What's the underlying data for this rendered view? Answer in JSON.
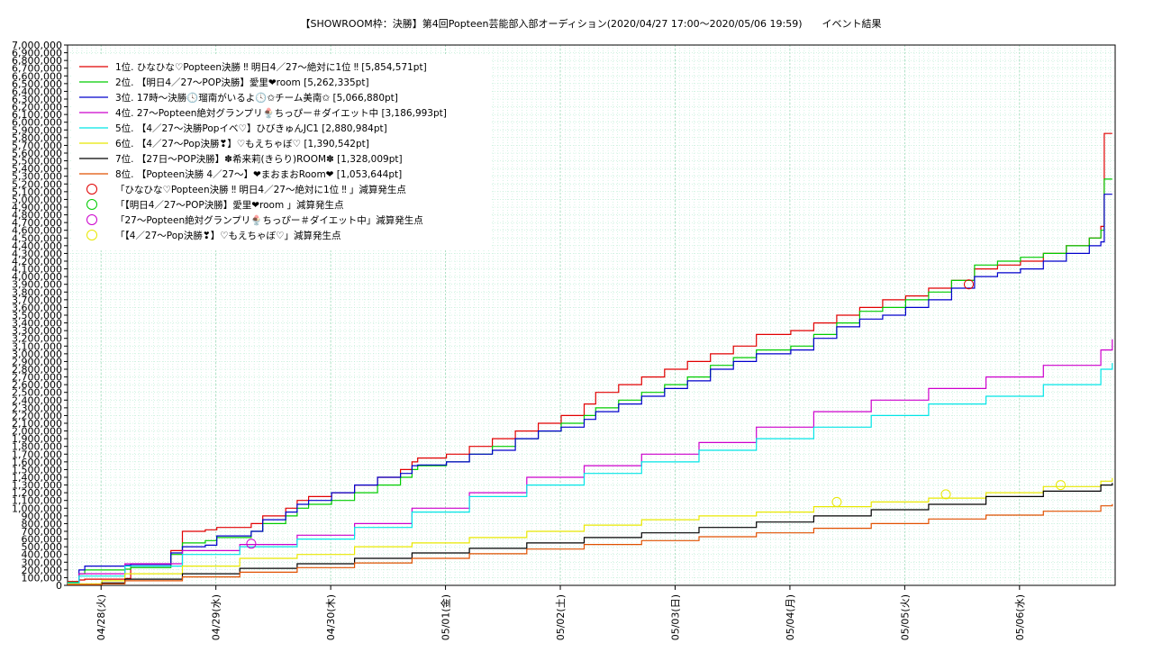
{
  "chart_data": {
    "type": "line",
    "title": "【SHOWROOM枠：決勝】第4回Popteen芸能部入部オーディション(2020/04/27 17:00〜2020/05/06 19:59)　　イベント結果",
    "xlabel": "",
    "ylabel": "",
    "x_unit": "days since 2020/04/27 17:00",
    "xlim": [
      0,
      9.125
    ],
    "ylim": [
      0,
      7000000
    ],
    "ytick_step": 100000,
    "grid": true,
    "legend_position": "top-left",
    "x_ticks": [
      {
        "x": 0.292,
        "label": "04/28(火)"
      },
      {
        "x": 1.292,
        "label": "04/29(水)"
      },
      {
        "x": 2.292,
        "label": "04/30(木)"
      },
      {
        "x": 3.292,
        "label": "05/01(金)"
      },
      {
        "x": 4.292,
        "label": "05/02(土)"
      },
      {
        "x": 5.292,
        "label": "05/03(日)"
      },
      {
        "x": 6.292,
        "label": "05/04(月)"
      },
      {
        "x": 7.292,
        "label": "05/05(火)"
      },
      {
        "x": 8.292,
        "label": "05/06(水)"
      }
    ],
    "series": [
      {
        "name": "1位. ひなひな♡Popteen決勝 ‼ 明日4／27〜絶対に1位 ‼ [5,854,571pt]",
        "color": "#e00000",
        "x": [
          0,
          0.1,
          0.15,
          0.5,
          0.55,
          0.9,
          1.0,
          1.2,
          1.3,
          1.6,
          1.7,
          1.9,
          2.0,
          2.1,
          2.3,
          2.5,
          2.7,
          2.9,
          3.0,
          3.05,
          3.3,
          3.5,
          3.7,
          3.9,
          4.1,
          4.3,
          4.5,
          4.6,
          4.8,
          5.0,
          5.2,
          5.4,
          5.6,
          5.8,
          6.0,
          6.3,
          6.5,
          6.7,
          6.9,
          7.1,
          7.3,
          7.5,
          7.7,
          7.9,
          8.1,
          8.3,
          8.5,
          8.7,
          8.9,
          9.0,
          9.03,
          9.1
        ],
        "y": [
          50000,
          70000,
          80000,
          90000,
          250000,
          450000,
          700000,
          720000,
          750000,
          800000,
          900000,
          1000000,
          1100000,
          1150000,
          1200000,
          1300000,
          1400000,
          1500000,
          1600000,
          1650000,
          1700000,
          1800000,
          1900000,
          2000000,
          2100000,
          2200000,
          2350000,
          2500000,
          2600000,
          2700000,
          2800000,
          2900000,
          3000000,
          3100000,
          3250000,
          3300000,
          3400000,
          3500000,
          3600000,
          3700000,
          3750000,
          3850000,
          3950000,
          4100000,
          4150000,
          4200000,
          4300000,
          4400000,
          4500000,
          4650000,
          5854571,
          5854571
        ]
      },
      {
        "name": "2位. 【明日4／27〜POP決勝】愛里❤room [5,262,335pt]",
        "color": "#00cc00",
        "x": [
          0,
          0.1,
          0.15,
          0.5,
          0.55,
          0.9,
          1.0,
          1.2,
          1.3,
          1.6,
          1.7,
          1.9,
          2.0,
          2.1,
          2.3,
          2.5,
          2.7,
          2.9,
          3.0,
          3.05,
          3.3,
          3.5,
          3.7,
          3.9,
          4.1,
          4.3,
          4.5,
          4.6,
          4.8,
          5.0,
          5.2,
          5.4,
          5.6,
          5.8,
          6.0,
          6.3,
          6.5,
          6.7,
          6.9,
          7.1,
          7.3,
          7.5,
          7.7,
          7.9,
          8.1,
          8.3,
          8.5,
          8.7,
          8.9,
          9.0,
          9.03,
          9.1
        ],
        "y": [
          40000,
          150000,
          200000,
          210000,
          230000,
          400000,
          550000,
          580000,
          620000,
          700000,
          800000,
          900000,
          1000000,
          1050000,
          1100000,
          1200000,
          1300000,
          1400000,
          1500000,
          1550000,
          1600000,
          1700000,
          1800000,
          1900000,
          2000000,
          2100000,
          2200000,
          2300000,
          2400000,
          2500000,
          2600000,
          2700000,
          2850000,
          2950000,
          3050000,
          3100000,
          3250000,
          3400000,
          3550000,
          3600000,
          3700000,
          3800000,
          3950000,
          4150000,
          4200000,
          4250000,
          4300000,
          4400000,
          4500000,
          4600000,
          5262335,
          5262335
        ]
      },
      {
        "name": "3位. 17時〜決勝🕓瑠南がいるよ🕓✩チーム美南✩ [5,066,880pt]",
        "color": "#0000cc",
        "x": [
          0,
          0.1,
          0.15,
          0.5,
          0.55,
          0.9,
          1.0,
          1.2,
          1.3,
          1.6,
          1.7,
          1.9,
          2.0,
          2.1,
          2.3,
          2.5,
          2.7,
          2.9,
          3.0,
          3.05,
          3.3,
          3.5,
          3.7,
          3.9,
          4.1,
          4.3,
          4.5,
          4.6,
          4.8,
          5.0,
          5.2,
          5.4,
          5.6,
          5.8,
          6.0,
          6.3,
          6.5,
          6.7,
          6.9,
          7.1,
          7.3,
          7.5,
          7.7,
          7.9,
          8.1,
          8.3,
          8.5,
          8.7,
          8.9,
          9.0,
          9.03,
          9.1
        ],
        "y": [
          30000,
          200000,
          250000,
          260000,
          270000,
          420000,
          500000,
          520000,
          640000,
          700000,
          850000,
          950000,
          1050000,
          1100000,
          1200000,
          1300000,
          1400000,
          1450000,
          1550000,
          1560000,
          1600000,
          1700000,
          1750000,
          1900000,
          2000000,
          2050000,
          2150000,
          2250000,
          2350000,
          2450000,
          2550000,
          2650000,
          2800000,
          2900000,
          3000000,
          3050000,
          3200000,
          3350000,
          3450000,
          3500000,
          3600000,
          3700000,
          3850000,
          4000000,
          4050000,
          4100000,
          4200000,
          4300000,
          4400000,
          4450000,
          5066880,
          5066880
        ]
      },
      {
        "name": "4位. 27〜Popteen絶対グランプリ🍨ちっぴー＃ダイエット中 [3,186,993pt]",
        "color": "#cc00cc",
        "x": [
          0,
          0.1,
          0.5,
          1.0,
          1.5,
          2.0,
          2.5,
          3.0,
          3.5,
          4.0,
          4.5,
          5.0,
          5.5,
          6.0,
          6.5,
          7.0,
          7.5,
          8.0,
          8.5,
          9.0,
          9.1
        ],
        "y": [
          30000,
          150000,
          280000,
          450000,
          530000,
          650000,
          800000,
          1000000,
          1200000,
          1400000,
          1550000,
          1700000,
          1850000,
          2050000,
          2250000,
          2400000,
          2550000,
          2700000,
          2850000,
          3050000,
          3186993
        ]
      },
      {
        "name": "5位. 【4／27〜決勝Popイベ♡】ひびきゅんJC1 [2,880,984pt]",
        "color": "#00e5e5",
        "x": [
          0,
          0.1,
          0.5,
          1.0,
          1.5,
          2.0,
          2.5,
          3.0,
          3.5,
          4.0,
          4.5,
          5.0,
          5.5,
          6.0,
          6.5,
          7.0,
          7.5,
          8.0,
          8.5,
          9.0,
          9.1
        ],
        "y": [
          30000,
          120000,
          250000,
          400000,
          500000,
          600000,
          750000,
          950000,
          1150000,
          1300000,
          1450000,
          1600000,
          1750000,
          1900000,
          2050000,
          2200000,
          2350000,
          2450000,
          2600000,
          2800000,
          2880984
        ]
      },
      {
        "name": "6位. 【4／27〜Pop決勝❣】♡もえちゃぼ♡ [1,390,542pt]",
        "color": "#e8e800",
        "x": [
          0,
          0.3,
          0.5,
          1.0,
          1.5,
          2.0,
          2.5,
          3.0,
          3.5,
          4.0,
          4.5,
          5.0,
          5.5,
          6.0,
          6.5,
          7.0,
          7.5,
          8.0,
          8.5,
          9.0,
          9.1
        ],
        "y": [
          20000,
          60000,
          150000,
          250000,
          350000,
          400000,
          500000,
          550000,
          620000,
          700000,
          780000,
          850000,
          900000,
          950000,
          1020000,
          1080000,
          1130000,
          1200000,
          1280000,
          1350000,
          1390542
        ]
      },
      {
        "name": "7位. 【27日〜POP決勝】✽希来莉(きらり)ROOM✽ [1,328,009pt]",
        "color": "#000000",
        "x": [
          0,
          0.3,
          0.5,
          1.0,
          1.5,
          2.0,
          2.5,
          3.0,
          3.5,
          4.0,
          4.5,
          5.0,
          5.5,
          6.0,
          6.5,
          7.0,
          7.5,
          8.0,
          8.5,
          9.0,
          9.1
        ],
        "y": [
          10000,
          30000,
          80000,
          150000,
          220000,
          280000,
          350000,
          420000,
          480000,
          550000,
          620000,
          680000,
          750000,
          820000,
          900000,
          980000,
          1050000,
          1150000,
          1220000,
          1300000,
          1328009
        ]
      },
      {
        "name": "8位. 【Popteen決勝 4／27〜】❤まおまおRoom❤ [1,053,644pt]",
        "color": "#e05000",
        "x": [
          0,
          0.3,
          0.5,
          1.0,
          1.5,
          2.0,
          2.5,
          3.0,
          3.5,
          4.0,
          4.5,
          5.0,
          5.5,
          6.0,
          6.5,
          7.0,
          7.5,
          8.0,
          8.5,
          9.0,
          9.1
        ],
        "y": [
          10000,
          20000,
          60000,
          110000,
          170000,
          230000,
          290000,
          350000,
          410000,
          470000,
          530000,
          580000,
          630000,
          680000,
          740000,
          800000,
          860000,
          910000,
          960000,
          1030000,
          1053644
        ]
      }
    ],
    "markers": [
      {
        "name": "「ひなひな♡Popteen決勝 ‼ 明日4／27〜絶対に1位 ‼ 」減算発生点",
        "color": "#e00000",
        "points": [
          [
            7.85,
            3900000
          ]
        ]
      },
      {
        "name": "「【明日4／27〜POP決勝】愛里❤room 」減算発生点",
        "color": "#00cc00",
        "points": []
      },
      {
        "name": "「27〜Popteen絶対グランプリ🍨ちっぴー＃ダイエット中」減算発生点",
        "color": "#cc00cc",
        "points": [
          [
            1.6,
            540000
          ]
        ]
      },
      {
        "name": "「【4／27〜Pop決勝❣】♡もえちゃぼ♡」減算発生点",
        "color": "#e8e800",
        "points": [
          [
            6.7,
            1080000
          ],
          [
            7.65,
            1180000
          ],
          [
            8.65,
            1300000
          ]
        ]
      }
    ]
  }
}
